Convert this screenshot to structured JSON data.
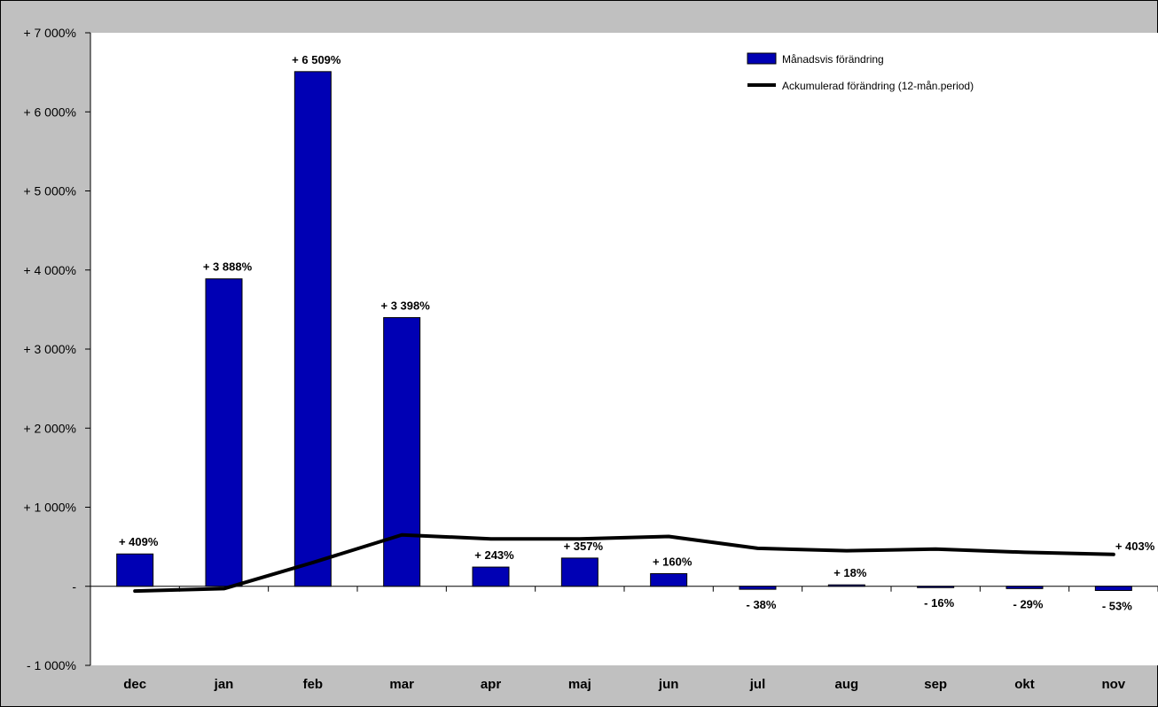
{
  "colors": {
    "outer_background": "#c0c0c0",
    "plot_background": "#ffffff",
    "bar_fill": "#0000b4",
    "line_color": "#000000"
  },
  "chart_data": {
    "type": "bar",
    "title": "",
    "xlabel": "",
    "ylabel": "",
    "ylim": [
      -1000,
      7000
    ],
    "grid": false,
    "legend_position": "top-right",
    "categories": [
      "dec",
      "jan",
      "feb",
      "mar",
      "apr",
      "maj",
      "jun",
      "jul",
      "aug",
      "sep",
      "okt",
      "nov"
    ],
    "y_ticks": [
      -1000,
      0,
      1000,
      2000,
      3000,
      4000,
      5000,
      6000,
      7000
    ],
    "y_tick_labels": [
      "- 1 000%",
      "-",
      "+ 1 000%",
      "+ 2 000%",
      "+ 3 000%",
      "+ 4 000%",
      "+ 5 000%",
      "+ 6 000%",
      "+ 7 000%"
    ],
    "series": [
      {
        "name": "Månadsvis förändring",
        "type": "bar",
        "values": [
          409,
          3888,
          6509,
          3398,
          243,
          357,
          160,
          -38,
          18,
          -16,
          -29,
          -53
        ],
        "data_labels": [
          "+ 409%",
          "+ 3 888%",
          "+ 6 509%",
          "+ 3 398%",
          "+ 243%",
          "+ 357%",
          "+ 160%",
          "- 38%",
          "+ 18%",
          "- 16%",
          "- 29%",
          "- 53%"
        ]
      },
      {
        "name": "Ackumulerad förändring (12-mån.period)",
        "type": "line",
        "values": [
          -60,
          -30,
          300,
          650,
          600,
          600,
          630,
          480,
          450,
          470,
          430,
          403
        ],
        "data_labels": [
          "",
          "",
          "",
          "",
          "",
          "",
          "",
          "",
          "",
          "",
          "",
          "+ 403%"
        ]
      }
    ]
  }
}
